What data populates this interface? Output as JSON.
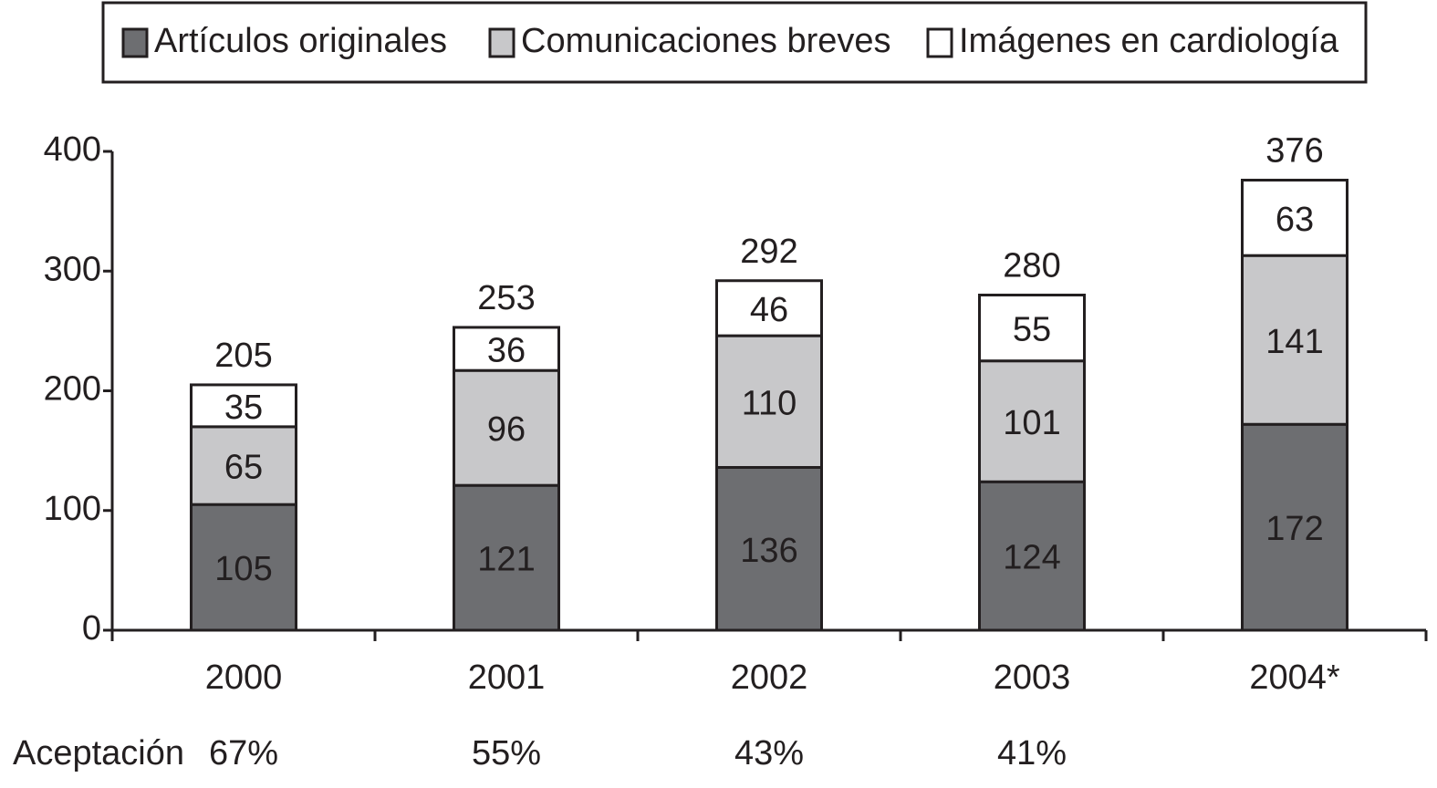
{
  "chart_data": {
    "type": "stacked-bar",
    "categories": [
      "2000",
      "2001",
      "2002",
      "2003",
      "2004*"
    ],
    "series": [
      {
        "name": "Artículos originales",
        "color": "#6d6e71",
        "values": [
          105,
          121,
          136,
          124,
          172
        ]
      },
      {
        "name": "Comunicaciones breves",
        "color": "#c8c8ca",
        "values": [
          65,
          96,
          110,
          101,
          141
        ]
      },
      {
        "name": "Imágenes en cardiología",
        "color": "#ffffff",
        "values": [
          35,
          36,
          46,
          55,
          63
        ]
      }
    ],
    "totals": [
      205,
      253,
      292,
      280,
      376
    ],
    "acceptance": {
      "label": "Aceptación",
      "values": [
        67,
        55,
        43,
        41,
        null
      ],
      "value_labels": [
        "67%",
        "55%",
        "43%",
        "41%",
        null
      ]
    },
    "ylim": [
      0,
      400
    ],
    "yticks": [
      0,
      100,
      200,
      300,
      400
    ],
    "legend": "top",
    "grid": false
  }
}
